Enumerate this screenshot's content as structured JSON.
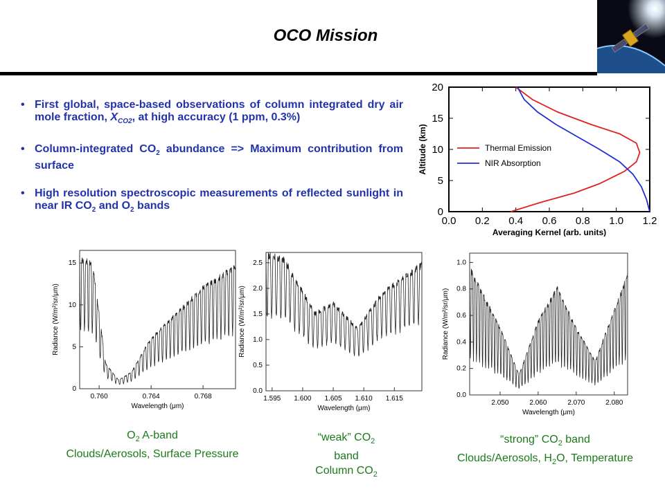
{
  "title": "OCO Mission",
  "bullets": [
    {
      "html": "First global, space-based observations of column integrated dry air mole fraction, <i>X<sub style='font-size:10px'>CO2</sub></i>, at high accuracy (1 ppm, 0.3%)"
    },
    {
      "html": "Column-integrated CO<sub style='font-size:10px'>2</sub> abundance =&gt; Maximum contribution from surface"
    },
    {
      "html": "High resolution spectroscopic measurements of reflected sunlight in near IR CO<sub style='font-size:10px'>2</sub> and O<sub style='font-size:10px'>2</sub> bands"
    }
  ],
  "captions": {
    "o2": [
      "O<sub style='font-size:11px'>2</sub> A-band",
      "Clouds/Aerosols, Surface Pressure"
    ],
    "weak": [
      "“weak” CO<sub style='font-size:11px'>2</sub>",
      "band",
      "Column CO<sub style='font-size:11px'>2</sub>"
    ],
    "strong": [
      "“strong” CO<sub style='font-size:11px'>2</sub> band",
      "Clouds/Aerosols, H<sub style='font-size:11px'>2</sub>O, Temperature"
    ]
  },
  "chart_data": [
    {
      "type": "line",
      "title": "",
      "xlabel": "Averaging Kernel (arb. units)",
      "ylabel": "Altitude (km)",
      "xlim": [
        0.0,
        1.2
      ],
      "ylim": [
        0,
        20
      ],
      "xticks": [
        "0.0",
        "0.2",
        "0.4",
        "0.6",
        "0.8",
        "1.0",
        "1.2"
      ],
      "yticks": [
        "0",
        "5",
        "10",
        "15",
        "20"
      ],
      "legend": "center-right",
      "series": [
        {
          "name": "Thermal Emission",
          "color": "#e02020",
          "x": [
            0.37,
            0.55,
            0.75,
            0.9,
            1.05,
            1.12,
            1.14,
            1.12,
            1.02,
            0.85,
            0.65,
            0.5,
            0.4
          ],
          "y": [
            0,
            1.5,
            3,
            4.5,
            6.5,
            8,
            9.5,
            11,
            12.5,
            14,
            16,
            18,
            20
          ]
        },
        {
          "name": "NIR Absorption",
          "color": "#1f2fd6",
          "x": [
            1.2,
            1.18,
            1.15,
            1.1,
            1.02,
            0.9,
            0.77,
            0.64,
            0.53,
            0.45,
            0.41
          ],
          "y": [
            0,
            2,
            4,
            6,
            8,
            10,
            12,
            14,
            16,
            18,
            20
          ]
        }
      ]
    },
    {
      "type": "line",
      "xlabel": "Wavelength (μm)",
      "ylabel": "Radiance (W/m²/sr/μm)",
      "xlim": [
        0.7585,
        0.7705
      ],
      "ylim": [
        0,
        16.5
      ],
      "xticks": [
        "0.760",
        "0.764",
        "0.768"
      ],
      "yticks": [
        "0",
        "5",
        "10",
        "15"
      ],
      "series": [
        {
          "name": "",
          "color": "#222222",
          "x_start": 0.7585,
          "x_end": 0.7705,
          "description_points": [
            [
              0.7585,
              15.5
            ],
            [
              0.7595,
              14.8
            ],
            [
              0.7605,
              3
            ],
            [
              0.7615,
              1
            ],
            [
              0.7625,
              2
            ],
            [
              0.764,
              6
            ],
            [
              0.766,
              9
            ],
            [
              0.768,
              12
            ],
            [
              0.7705,
              14.5
            ]
          ]
        }
      ]
    },
    {
      "type": "line",
      "xlabel": "Wavelength (μm)",
      "ylabel": "Radiance (W/m²/sr/μm)",
      "xlim": [
        1.594,
        1.6195
      ],
      "ylim": [
        0,
        2.7
      ],
      "xticks": [
        "1.595",
        "1.600",
        "1.605",
        "1.610",
        "1.615"
      ],
      "yticks": [
        "0.0",
        "0.5",
        "1.0",
        "1.5",
        "2.0",
        "2.5"
      ],
      "series": [
        {
          "name": "",
          "color": "#222222",
          "description_points": [
            [
              1.594,
              2.65
            ],
            [
              1.597,
              2.55
            ],
            [
              1.602,
              1.5
            ],
            [
              1.605,
              1.7
            ],
            [
              1.609,
              1.2
            ],
            [
              1.613,
              1.9
            ],
            [
              1.6195,
              2.45
            ]
          ]
        }
      ]
    },
    {
      "type": "line",
      "xlabel": "Wavelength (μm)",
      "ylabel": "Radiance (W/m²/sr/μm)",
      "xlim": [
        2.042,
        2.0835
      ],
      "ylim": [
        0,
        1.07
      ],
      "xticks": [
        "2.050",
        "2.060",
        "2.070",
        "2.080"
      ],
      "yticks": [
        "0.0",
        "0.2",
        "0.4",
        "0.6",
        "0.8",
        "1.0"
      ],
      "series": [
        {
          "name": "",
          "color": "#222222",
          "description_points": [
            [
              2.042,
              0.95
            ],
            [
              2.05,
              0.5
            ],
            [
              2.055,
              0.15
            ],
            [
              2.06,
              0.55
            ],
            [
              2.065,
              0.8
            ],
            [
              2.07,
              0.5
            ],
            [
              2.075,
              0.25
            ],
            [
              2.0835,
              0.9
            ]
          ]
        }
      ]
    }
  ]
}
